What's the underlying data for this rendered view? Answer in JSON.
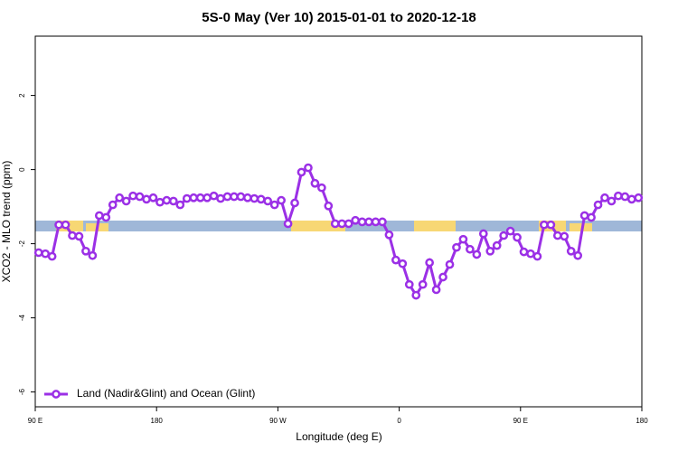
{
  "chart_data": {
    "type": "line",
    "title": "5S-0 May (Ver 10)   2015-01-01 to 2020-12-18",
    "x_label": "Longitude (deg E)",
    "y_label": "XCO2 - MLO trend (ppm)",
    "x": [
      92.5,
      97.5,
      102.5,
      107.5,
      112.5,
      117.5,
      122.5,
      127.5,
      132.5,
      137.5,
      142.5,
      147.5,
      152.5,
      157.5,
      162.5,
      167.5,
      172.5,
      177.5,
      182.5,
      187.5,
      192.5,
      197.5,
      202.5,
      207.5,
      212.5,
      217.5,
      222.5,
      227.5,
      232.5,
      237.5,
      242.5,
      247.5,
      252.5,
      257.5,
      262.5,
      267.5,
      272.5,
      277.5,
      282.5,
      287.5,
      292.5,
      297.5,
      302.5,
      307.5,
      312.5,
      317.5,
      322.5,
      327.5,
      332.5,
      337.5,
      342.5,
      347.5,
      352.5,
      357.5,
      362.5,
      367.5,
      372.5,
      377.5,
      382.5,
      387.5,
      392.5,
      397.5,
      402.5,
      407.5,
      412.5,
      417.5,
      422.5,
      427.5,
      432.5,
      437.5,
      442.5,
      447.5,
      452.5,
      457.5,
      462.5,
      467.5,
      472.5,
      477.5,
      482.5,
      487.5,
      492.5,
      497.5,
      502.5,
      507.5,
      512.5,
      517.5,
      522.5,
      527.5,
      532.5,
      537.5
    ],
    "series": [
      {
        "name": "Land (Nadir&Glint) and Ocean (Glint)",
        "color": "#9b30e6",
        "values": [
          -2.24,
          -2.27,
          -2.34,
          -1.49,
          -1.49,
          -1.78,
          -1.8,
          -2.2,
          -2.32,
          -1.24,
          -1.29,
          -0.95,
          -0.76,
          -0.85,
          -0.71,
          -0.73,
          -0.8,
          -0.76,
          -0.88,
          -0.83,
          -0.85,
          -0.95,
          -0.78,
          -0.76,
          -0.76,
          -0.76,
          -0.71,
          -0.78,
          -0.73,
          -0.73,
          -0.73,
          -0.76,
          -0.78,
          -0.8,
          -0.85,
          -0.95,
          -0.83,
          -1.46,
          -0.9,
          -0.07,
          0.05,
          -0.37,
          -0.49,
          -0.98,
          -1.46,
          -1.46,
          -1.46,
          -1.37,
          -1.41,
          -1.41,
          -1.41,
          -1.41,
          -1.76,
          -2.44,
          -2.54,
          -3.1,
          -3.39,
          -3.1,
          -2.51,
          -3.24,
          -2.9,
          -2.56,
          -2.1,
          -1.88,
          -2.15,
          -2.29,
          -1.73,
          -2.2,
          -2.05,
          -1.78,
          -1.66,
          -1.83,
          -2.22,
          -2.27,
          -2.34,
          -1.49,
          -1.49,
          -1.78,
          -1.8,
          -2.2,
          -2.32,
          -1.24,
          -1.29,
          -0.95,
          -0.76,
          -0.85,
          -0.71,
          -0.73,
          -0.8,
          -0.76
        ]
      }
    ],
    "xlim": [
      90,
      540
    ],
    "xticks": [
      {
        "value": 90,
        "label": "90 E"
      },
      180,
      {
        "value": 270,
        "label": "90 W"
      },
      {
        "value": 360,
        "label": "0"
      },
      {
        "value": 450,
        "label": "90 E"
      },
      {
        "value": 540,
        "label": "180"
      }
    ],
    "ylim": [
      -6.4,
      3.6
    ],
    "yticks": [
      -6,
      -4,
      -2,
      0,
      2
    ],
    "legend": "bottom-left"
  }
}
